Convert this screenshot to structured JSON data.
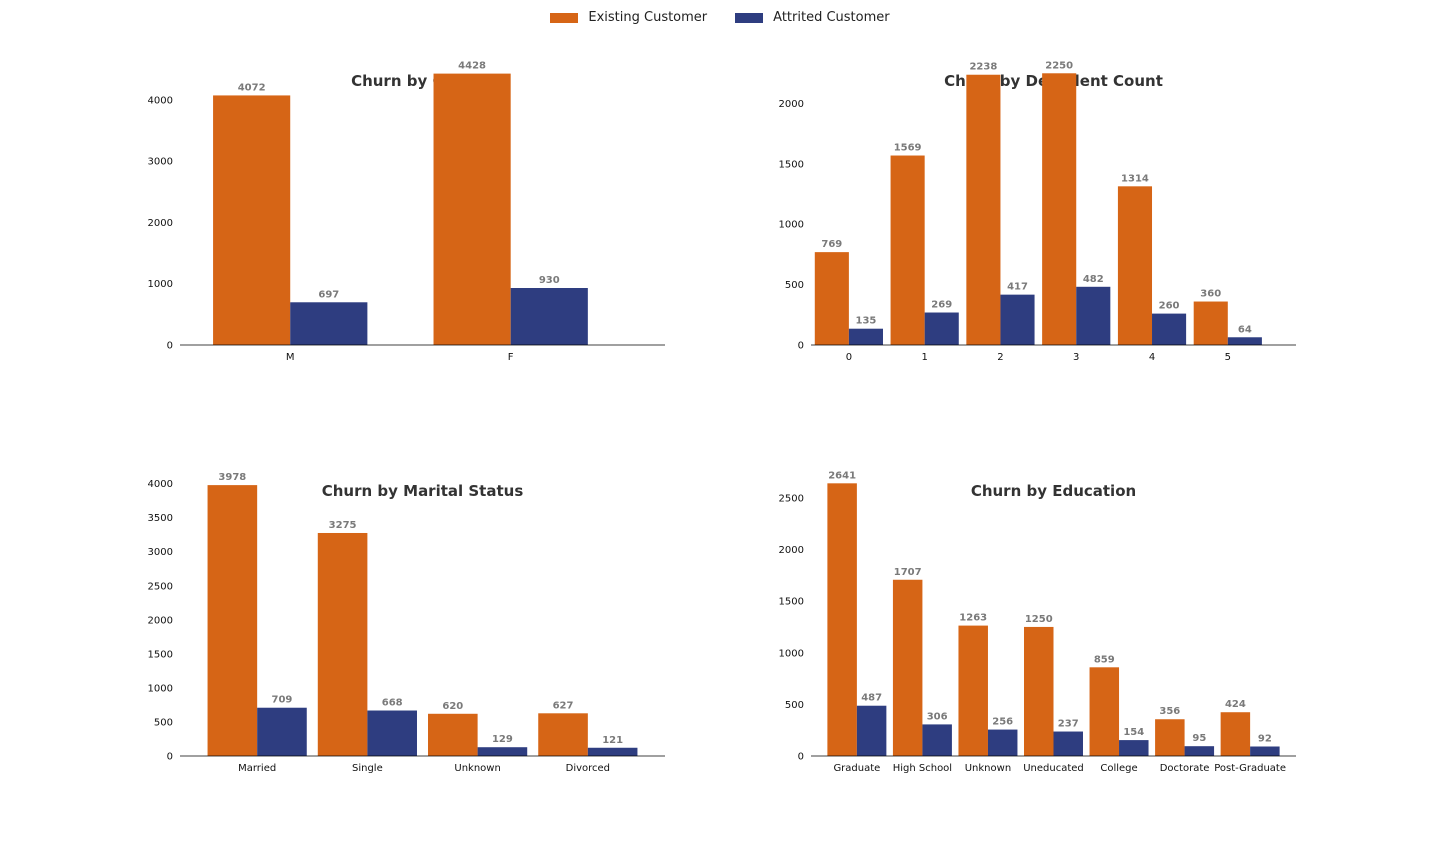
{
  "legend": {
    "items": [
      {
        "label": "Existing Customer",
        "color": "#D66516"
      },
      {
        "label": "Attrited Customer",
        "color": "#2E3D80"
      }
    ]
  },
  "chart_data": [
    {
      "type": "bar",
      "title": "Churn by Gender",
      "categories": [
        "M",
        "F"
      ],
      "series": [
        {
          "name": "Existing Customer",
          "values": [
            4072,
            4428
          ]
        },
        {
          "name": "Attrited Customer",
          "values": [
            697,
            930
          ]
        }
      ],
      "ylim": [
        0,
        4650
      ],
      "yticks": [
        0,
        1000,
        2000,
        3000,
        4000
      ]
    },
    {
      "type": "bar",
      "title": "Churn by Depedent Count",
      "categories": [
        "0",
        "1",
        "2",
        "3",
        "4",
        "5"
      ],
      "series": [
        {
          "name": "Existing Customer",
          "values": [
            769,
            1569,
            2238,
            2250,
            1314,
            360
          ]
        },
        {
          "name": "Attrited Customer",
          "values": [
            135,
            269,
            417,
            482,
            260,
            64
          ]
        }
      ],
      "ylim": [
        0,
        2360
      ],
      "yticks": [
        0,
        500,
        1000,
        1500,
        2000
      ]
    },
    {
      "type": "bar",
      "title": "Churn by Marital Status",
      "categories": [
        "Married",
        "Single",
        "Unknown",
        "Divorced"
      ],
      "series": [
        {
          "name": "Existing Customer",
          "values": [
            3978,
            3275,
            620,
            627
          ]
        },
        {
          "name": "Attrited Customer",
          "values": [
            709,
            668,
            129,
            121
          ]
        }
      ],
      "ylim": [
        0,
        4200
      ],
      "yticks": [
        0,
        500,
        1000,
        1500,
        2000,
        2500,
        3000,
        3500,
        4000
      ]
    },
    {
      "type": "bar",
      "title": "Churn by Education",
      "categories": [
        "Graduate",
        "High School",
        "Unknown",
        "Uneducated",
        "College",
        "Doctorate",
        "Post-Graduate"
      ],
      "series": [
        {
          "name": "Existing Customer",
          "values": [
            2641,
            1707,
            1263,
            1250,
            859,
            356,
            424
          ]
        },
        {
          "name": "Attrited Customer",
          "values": [
            487,
            306,
            256,
            237,
            154,
            95,
            92
          ]
        }
      ],
      "ylim": [
        0,
        2770
      ],
      "yticks": [
        0,
        500,
        1000,
        1500,
        2000,
        2500
      ]
    }
  ]
}
